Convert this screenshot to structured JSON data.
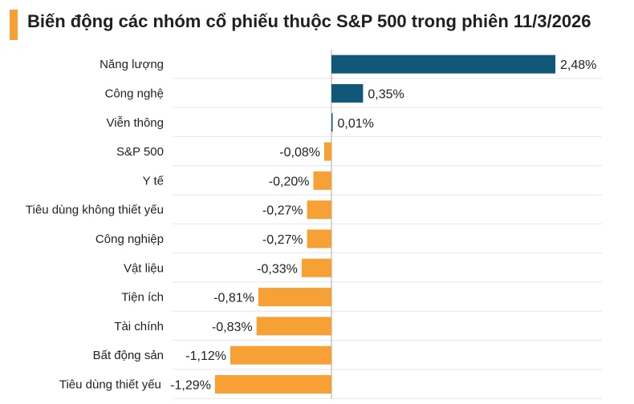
{
  "header": {
    "title": "Biến động các nhóm cổ phiếu thuộc S&P 500 trong phiên 11/3/2026"
  },
  "colors": {
    "accent": "#F7A035",
    "positive": "#115878",
    "negative": "#F7A035",
    "grid": "#E6E6E6",
    "axis": "#AAAAAA"
  },
  "chart_data": {
    "type": "bar",
    "orientation": "horizontal",
    "title": "Biến động các nhóm cổ phiếu thuộc S&P 500 trong phiên 11/3/2026",
    "xlabel": "",
    "ylabel": "",
    "unit": "%",
    "xlim": [
      -1.29,
      2.48
    ],
    "grid": true,
    "categories": [
      "Năng lượng",
      "Công nghệ",
      "Viễn thông",
      "S&P 500",
      "Y tế",
      "Tiêu dùng không thiết yếu",
      "Công nghiệp",
      "Vật liệu",
      "Tiện ích",
      "Tài chính",
      "Bất động sản",
      "Tiêu dùng thiết yếu"
    ],
    "values": [
      2.48,
      0.35,
      0.01,
      -0.08,
      -0.2,
      -0.27,
      -0.27,
      -0.33,
      -0.81,
      -0.83,
      -1.12,
      -1.29
    ],
    "labels": [
      "2,48%",
      "0,35%",
      "0,01%",
      "-0,08%",
      "-0,20%",
      "-0,27%",
      "-0,27%",
      "-0,33%",
      "-0,81%",
      "-0,83%",
      "-1,12%",
      "-1,29%"
    ]
  }
}
